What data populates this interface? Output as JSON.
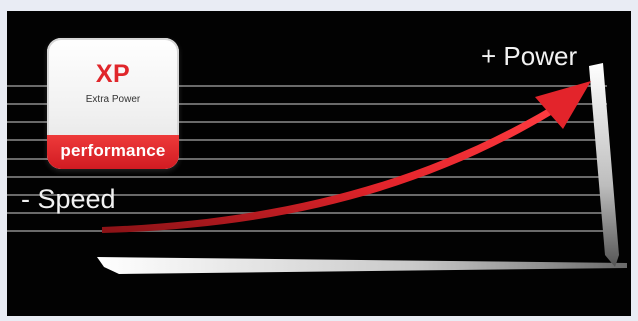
{
  "badge": {
    "title": "XP",
    "subtitle": "Extra Power",
    "band_text": "performance"
  },
  "labels": {
    "speed": "- Speed",
    "power": "+ Power"
  },
  "colors": {
    "background": "#020202",
    "arrow": "#e3242b",
    "badge_red": "#d11b22",
    "lines": "#8a8a8a"
  }
}
